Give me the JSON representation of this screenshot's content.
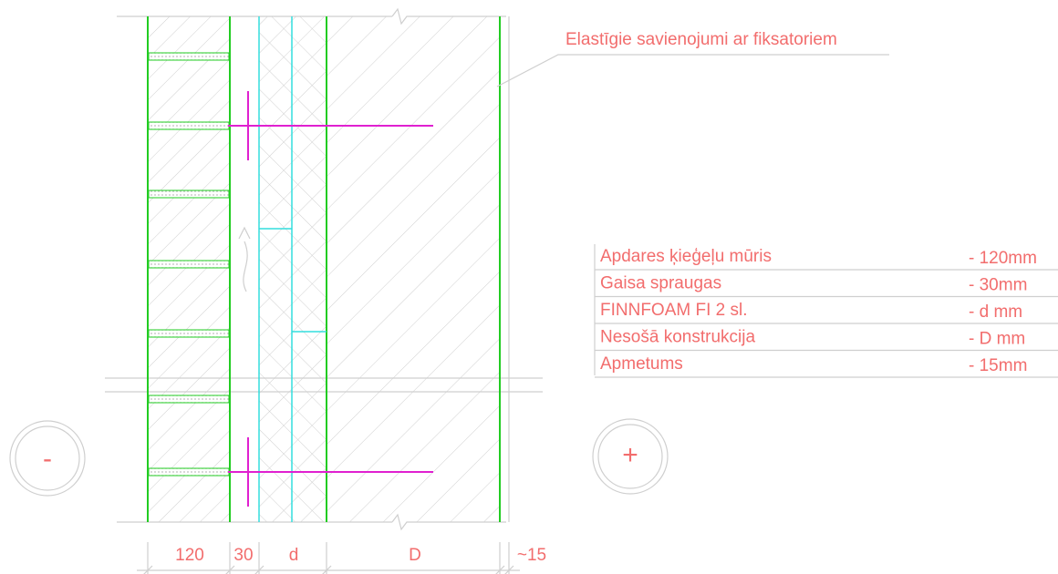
{
  "callout": "Elastīgie savienojumi ar fiksatoriem",
  "layers": [
    {
      "name": "Apdares ķieģeļu mūris",
      "thickness": "- 120mm"
    },
    {
      "name": "Gaisa spraugas",
      "thickness": "- 30mm"
    },
    {
      "name": "FINNFOAM FI 2 sl.",
      "thickness": "- d mm"
    },
    {
      "name": "Nesošā konstrukcija",
      "thickness": "- D mm"
    },
    {
      "name": "Apmetums",
      "thickness": "- 15mm"
    }
  ],
  "dimensions": [
    "120",
    "30",
    "d",
    "D",
    "~15"
  ],
  "sides": {
    "outside": "-",
    "inside": "+"
  }
}
